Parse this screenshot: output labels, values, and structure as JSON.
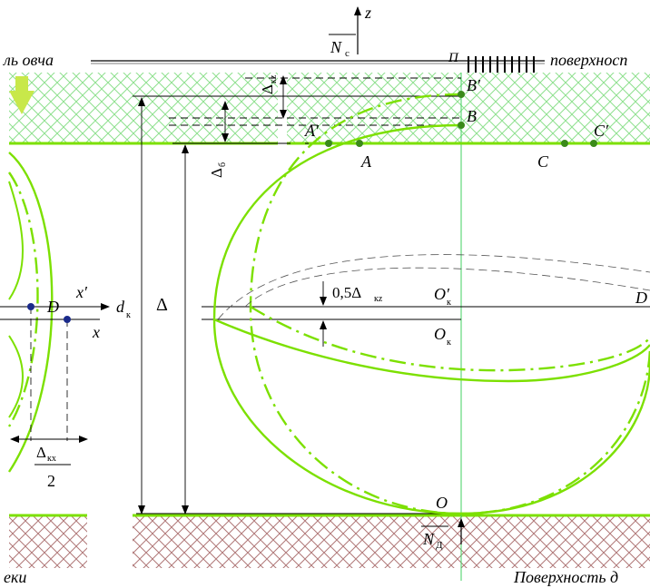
{
  "diagram": {
    "labels": {
      "axis_z": "z",
      "force_top": "N",
      "force_top_sub": "с",
      "top_point_sub": "П",
      "top_left_text": "ль овча",
      "top_right_text": "поверхносп",
      "point_B_prime": "B′",
      "point_B": "B",
      "point_A_prime": "A′",
      "point_A": "A",
      "point_C": "C",
      "point_C_prime": "C′",
      "delta_kz_top": "Δ",
      "delta_kz_top_sub": "кz",
      "delta_b": "Δ",
      "delta_b_sub": "б",
      "delta_main": "Δ",
      "half_delta_kz": "0,5Δ",
      "half_delta_kz_sub": "кz",
      "o_k_prime": "O′",
      "o_k_prime_sub": "к",
      "o_k": "O",
      "o_k_sub": "к",
      "point_D_right": "D",
      "point_D_left": "D",
      "x_prime": "x′",
      "x": "x",
      "d_k": "d",
      "d_k_sub": "к",
      "delta_kx": "Δ",
      "delta_kx_sub": "кx",
      "frac_denominator": "2",
      "point_O": "O",
      "force_bottom": "N",
      "force_bottom_sub": "Д",
      "bottom_left_text": "еки",
      "bottom_right_text": "Поверхность д"
    },
    "colors": {
      "curve_green": "#7CE000",
      "hatch_green": "#8ee08e",
      "hatch_brown": "#b07878",
      "arrow_yellow": "#c8e84a",
      "guide_green": "#40d060",
      "marker_blue": "#1a2a8a"
    }
  }
}
